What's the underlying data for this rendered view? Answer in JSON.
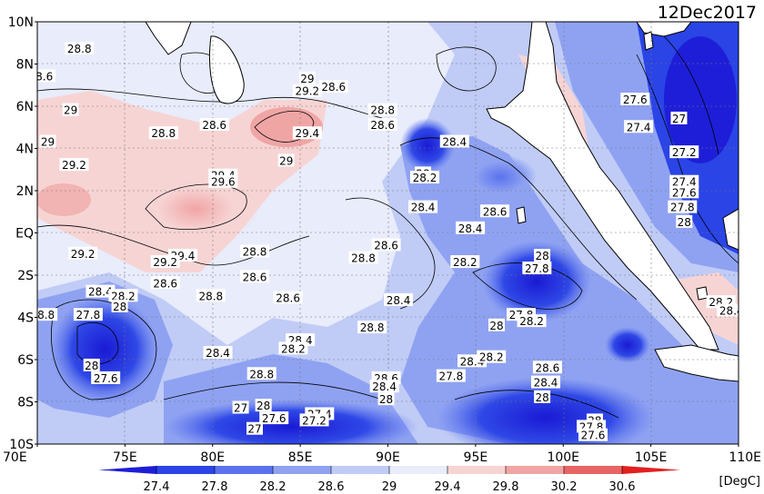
{
  "title": "12Dec2017",
  "units": "[DegC]",
  "y_ticks": [
    "10N",
    "8N",
    "6N",
    "4N",
    "2N",
    "EQ",
    "2S",
    "4S",
    "6S",
    "8S",
    "10S"
  ],
  "x_ticks": [
    "70E",
    "75E",
    "80E",
    "85E",
    "90E",
    "95E",
    "100E",
    "105E",
    "110E"
  ],
  "colorbar": {
    "labels": [
      "27.4",
      "27.8",
      "28.2",
      "28.6",
      "29",
      "29.4",
      "29.8",
      "30.2",
      "30.6"
    ],
    "colors": [
      "#1e1ed8",
      "#2a44e6",
      "#5a72ee",
      "#8fa2f2",
      "#c0ccf6",
      "#e8ecfb",
      "#f7d4d4",
      "#f0a5a5",
      "#e86565",
      "#e22020"
    ]
  },
  "contour_labels": [
    {
      "text": "28.8",
      "lon": 72.4,
      "lat": 8.7
    },
    {
      "text": "8.6",
      "lon": 70.4,
      "lat": 7.4
    },
    {
      "text": "29",
      "lon": 71.9,
      "lat": 5.8
    },
    {
      "text": "29",
      "lon": 85.4,
      "lat": 7.3
    },
    {
      "text": "29.2",
      "lon": 85.4,
      "lat": 6.7
    },
    {
      "text": "28.6",
      "lon": 86.9,
      "lat": 6.9
    },
    {
      "text": "28.8",
      "lon": 89.7,
      "lat": 5.8
    },
    {
      "text": "28.6",
      "lon": 89.7,
      "lat": 5.1
    },
    {
      "text": "28.6",
      "lon": 80.1,
      "lat": 5.1
    },
    {
      "text": "28.8",
      "lon": 77.2,
      "lat": 4.7
    },
    {
      "text": "29.4",
      "lon": 85.4,
      "lat": 4.7
    },
    {
      "text": "29",
      "lon": 70.6,
      "lat": 4.3
    },
    {
      "text": "29.2",
      "lon": 72.1,
      "lat": 3.2
    },
    {
      "text": "29",
      "lon": 84.2,
      "lat": 3.4
    },
    {
      "text": "28.4",
      "lon": 93.8,
      "lat": 4.3
    },
    {
      "text": "28",
      "lon": 92.0,
      "lat": 2.8
    },
    {
      "text": "28.2",
      "lon": 92.1,
      "lat": 2.6
    },
    {
      "text": "29.4",
      "lon": 80.6,
      "lat": 2.7
    },
    {
      "text": "29.6",
      "lon": 80.6,
      "lat": 2.4
    },
    {
      "text": "28.4",
      "lon": 92.0,
      "lat": 1.2
    },
    {
      "text": "28.6",
      "lon": 96.1,
      "lat": 1.0
    },
    {
      "text": "28.4",
      "lon": 94.7,
      "lat": 0.2
    },
    {
      "text": "29.2",
      "lon": 72.6,
      "lat": -1.0
    },
    {
      "text": "29.4",
      "lon": 78.3,
      "lat": -1.1
    },
    {
      "text": "29.2",
      "lon": 77.3,
      "lat": -1.4
    },
    {
      "text": "28.8",
      "lon": 82.4,
      "lat": -0.9
    },
    {
      "text": "28.6",
      "lon": 89.9,
      "lat": -0.6
    },
    {
      "text": "28.8",
      "lon": 88.6,
      "lat": -1.2
    },
    {
      "text": "28",
      "lon": 98.8,
      "lat": -1.1
    },
    {
      "text": "28.2",
      "lon": 94.4,
      "lat": -1.4
    },
    {
      "text": "27.8",
      "lon": 98.5,
      "lat": -1.7
    },
    {
      "text": "28.6",
      "lon": 82.4,
      "lat": -2.1
    },
    {
      "text": "28.6",
      "lon": 77.3,
      "lat": -2.4
    },
    {
      "text": "28.8",
      "lon": 79.9,
      "lat": -3.0
    },
    {
      "text": "28.4",
      "lon": 73.6,
      "lat": -2.8
    },
    {
      "text": "28.2",
      "lon": 74.9,
      "lat": -3.0
    },
    {
      "text": "28",
      "lon": 74.7,
      "lat": -3.5
    },
    {
      "text": "27.8",
      "lon": 72.9,
      "lat": -3.9
    },
    {
      "text": "8.8",
      "lon": 70.5,
      "lat": -3.9
    },
    {
      "text": "28.6",
      "lon": 84.3,
      "lat": -3.1
    },
    {
      "text": "28.4",
      "lon": 90.6,
      "lat": -3.2
    },
    {
      "text": "27.8",
      "lon": 97.6,
      "lat": -3.9
    },
    {
      "text": "28.2",
      "lon": 98.2,
      "lat": -4.2
    },
    {
      "text": "28",
      "lon": 96.2,
      "lat": -4.4
    },
    {
      "text": "28.8",
      "lon": 89.1,
      "lat": -4.5
    },
    {
      "text": "28.4",
      "lon": 85.0,
      "lat": -5.1
    },
    {
      "text": "28.2",
      "lon": 84.6,
      "lat": -5.5
    },
    {
      "text": "28.4",
      "lon": 80.3,
      "lat": -5.7
    },
    {
      "text": "28",
      "lon": 73.1,
      "lat": -6.3
    },
    {
      "text": "27.6",
      "lon": 73.9,
      "lat": -6.9
    },
    {
      "text": "28.4",
      "lon": 94.8,
      "lat": -6.1
    },
    {
      "text": "28.2",
      "lon": 95.9,
      "lat": -5.9
    },
    {
      "text": "28.6",
      "lon": 99.1,
      "lat": -6.4
    },
    {
      "text": "28.8",
      "lon": 82.8,
      "lat": -6.7
    },
    {
      "text": "28.6",
      "lon": 89.9,
      "lat": -6.9
    },
    {
      "text": "28.4",
      "lon": 89.8,
      "lat": -7.3
    },
    {
      "text": "27.8",
      "lon": 93.6,
      "lat": -6.8
    },
    {
      "text": "28.4",
      "lon": 99.0,
      "lat": -7.1
    },
    {
      "text": "28",
      "lon": 89.9,
      "lat": -7.9
    },
    {
      "text": "28",
      "lon": 98.8,
      "lat": -7.8
    },
    {
      "text": "27",
      "lon": 81.6,
      "lat": -8.3
    },
    {
      "text": "28",
      "lon": 82.9,
      "lat": -8.2
    },
    {
      "text": "27.6",
      "lon": 83.5,
      "lat": -8.8
    },
    {
      "text": "27.4",
      "lon": 86.1,
      "lat": -8.6
    },
    {
      "text": "27.2",
      "lon": 85.8,
      "lat": -8.9
    },
    {
      "text": "27",
      "lon": 82.4,
      "lat": -9.3
    },
    {
      "text": "28",
      "lon": 101.8,
      "lat": -8.9
    },
    {
      "text": "27.8",
      "lon": 101.6,
      "lat": -9.2
    },
    {
      "text": "27.6",
      "lon": 101.7,
      "lat": -9.6
    },
    {
      "text": "27.6",
      "lon": 104.1,
      "lat": 6.3
    },
    {
      "text": "27",
      "lon": 106.6,
      "lat": 5.4
    },
    {
      "text": "27.4",
      "lon": 104.3,
      "lat": 5.0
    },
    {
      "text": "27.2",
      "lon": 106.9,
      "lat": 3.8
    },
    {
      "text": "27.4",
      "lon": 106.9,
      "lat": 2.4
    },
    {
      "text": "27.6",
      "lon": 106.9,
      "lat": 1.9
    },
    {
      "text": "27.8",
      "lon": 106.8,
      "lat": 1.2
    },
    {
      "text": "28",
      "lon": 106.9,
      "lat": 0.5
    },
    {
      "text": "28.2",
      "lon": 109.0,
      "lat": -3.3
    },
    {
      "text": "28.4",
      "lon": 109.6,
      "lat": -3.7
    }
  ]
}
